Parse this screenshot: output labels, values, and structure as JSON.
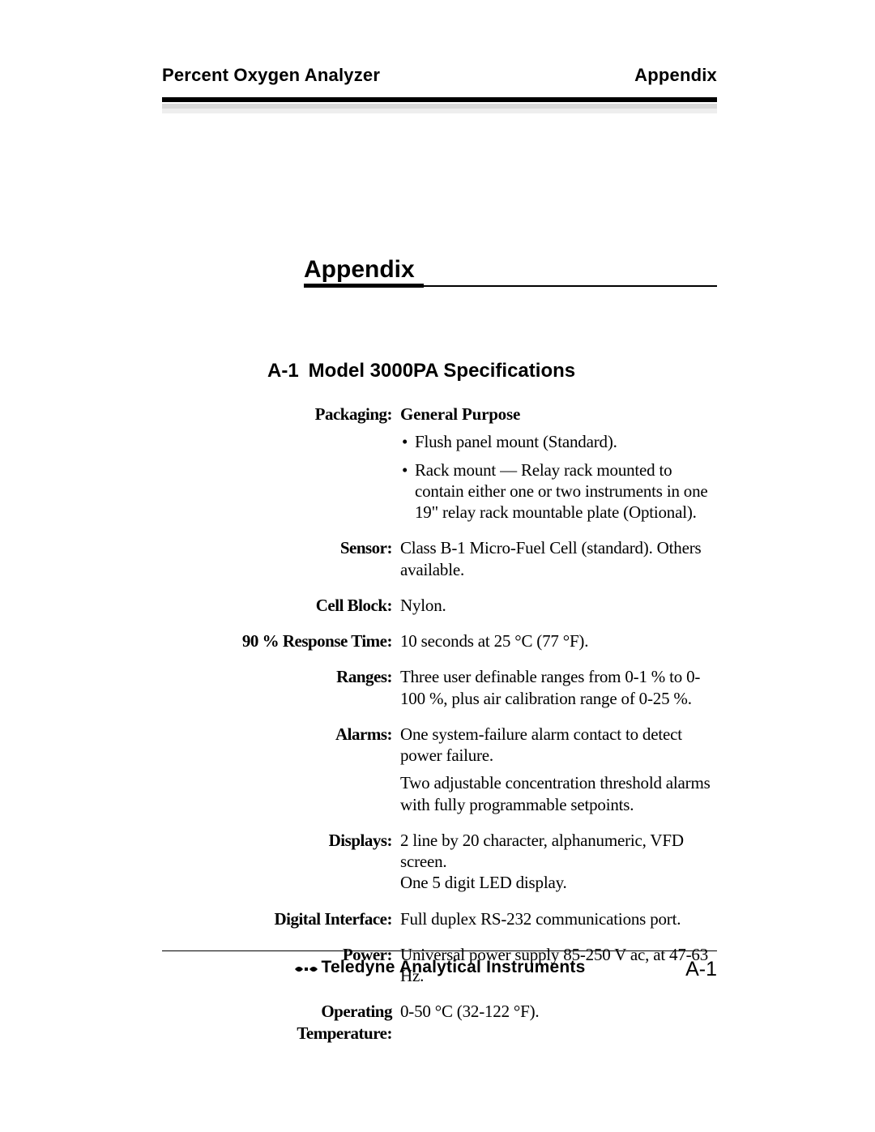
{
  "colors": {
    "text": "#000000",
    "background": "#ffffff",
    "rule_shadow_1": "#d9d9d9",
    "rule_shadow_2": "#eeeeee"
  },
  "typography": {
    "body_font": "Times New Roman",
    "heading_font": "Arial",
    "running_head_size_pt": 16,
    "appendix_title_size_pt": 22,
    "section_title_size_pt": 18,
    "spec_label_size_pt": 16,
    "spec_value_size_pt": 16,
    "footer_center_size_pt": 16,
    "footer_page_size_pt": 19
  },
  "running_head": {
    "left": "Percent Oxygen Analyzer",
    "right": "Appendix"
  },
  "appendix_title": "Appendix",
  "section": {
    "number": "A-1",
    "title": "Model  3000PA  Specifications"
  },
  "specs": [
    {
      "label": "Packaging:",
      "lead_bold": "General Purpose",
      "bullets": [
        "Flush panel mount (Standard).",
        "Rack mount — Relay rack mounted to contain either one or two instruments in one 19\" relay rack mountable plate (Optional)."
      ]
    },
    {
      "label": "Sensor:",
      "paragraphs": [
        "Class B-1 Micro-Fuel Cell (standard). Others available."
      ]
    },
    {
      "label": "Cell Block:",
      "paragraphs": [
        "Nylon."
      ]
    },
    {
      "label": "90 % Response Time:",
      "paragraphs": [
        "10 seconds at 25 °C (77 °F)."
      ]
    },
    {
      "label": "Ranges:",
      "paragraphs": [
        "Three user definable ranges from 0-1 % to 0-100 %, plus air calibration range of 0-25 %."
      ]
    },
    {
      "label": "Alarms:",
      "paragraphs": [
        "One system-failure alarm contact to detect power failure.",
        "Two adjustable concentration threshold alarms with fully programmable setpoints."
      ]
    },
    {
      "label": "Displays:",
      "paragraphs": [
        "2 line by 20 character, alphanumeric, VFD screen.\nOne 5 digit LED display."
      ]
    },
    {
      "label": "Digital Interface:",
      "paragraphs": [
        "Full duplex RS-232 communications port."
      ]
    },
    {
      "label": "Power:",
      "paragraphs": [
        "Universal power supply 85-250 V ac, at 47-63 Hz."
      ]
    },
    {
      "label": "Operating Temperature:",
      "paragraphs": [
        "0-50 °C (32-122 °F)."
      ]
    }
  ],
  "footer": {
    "company": "Teledyne Analytical Instruments",
    "page_number": "A-1"
  }
}
